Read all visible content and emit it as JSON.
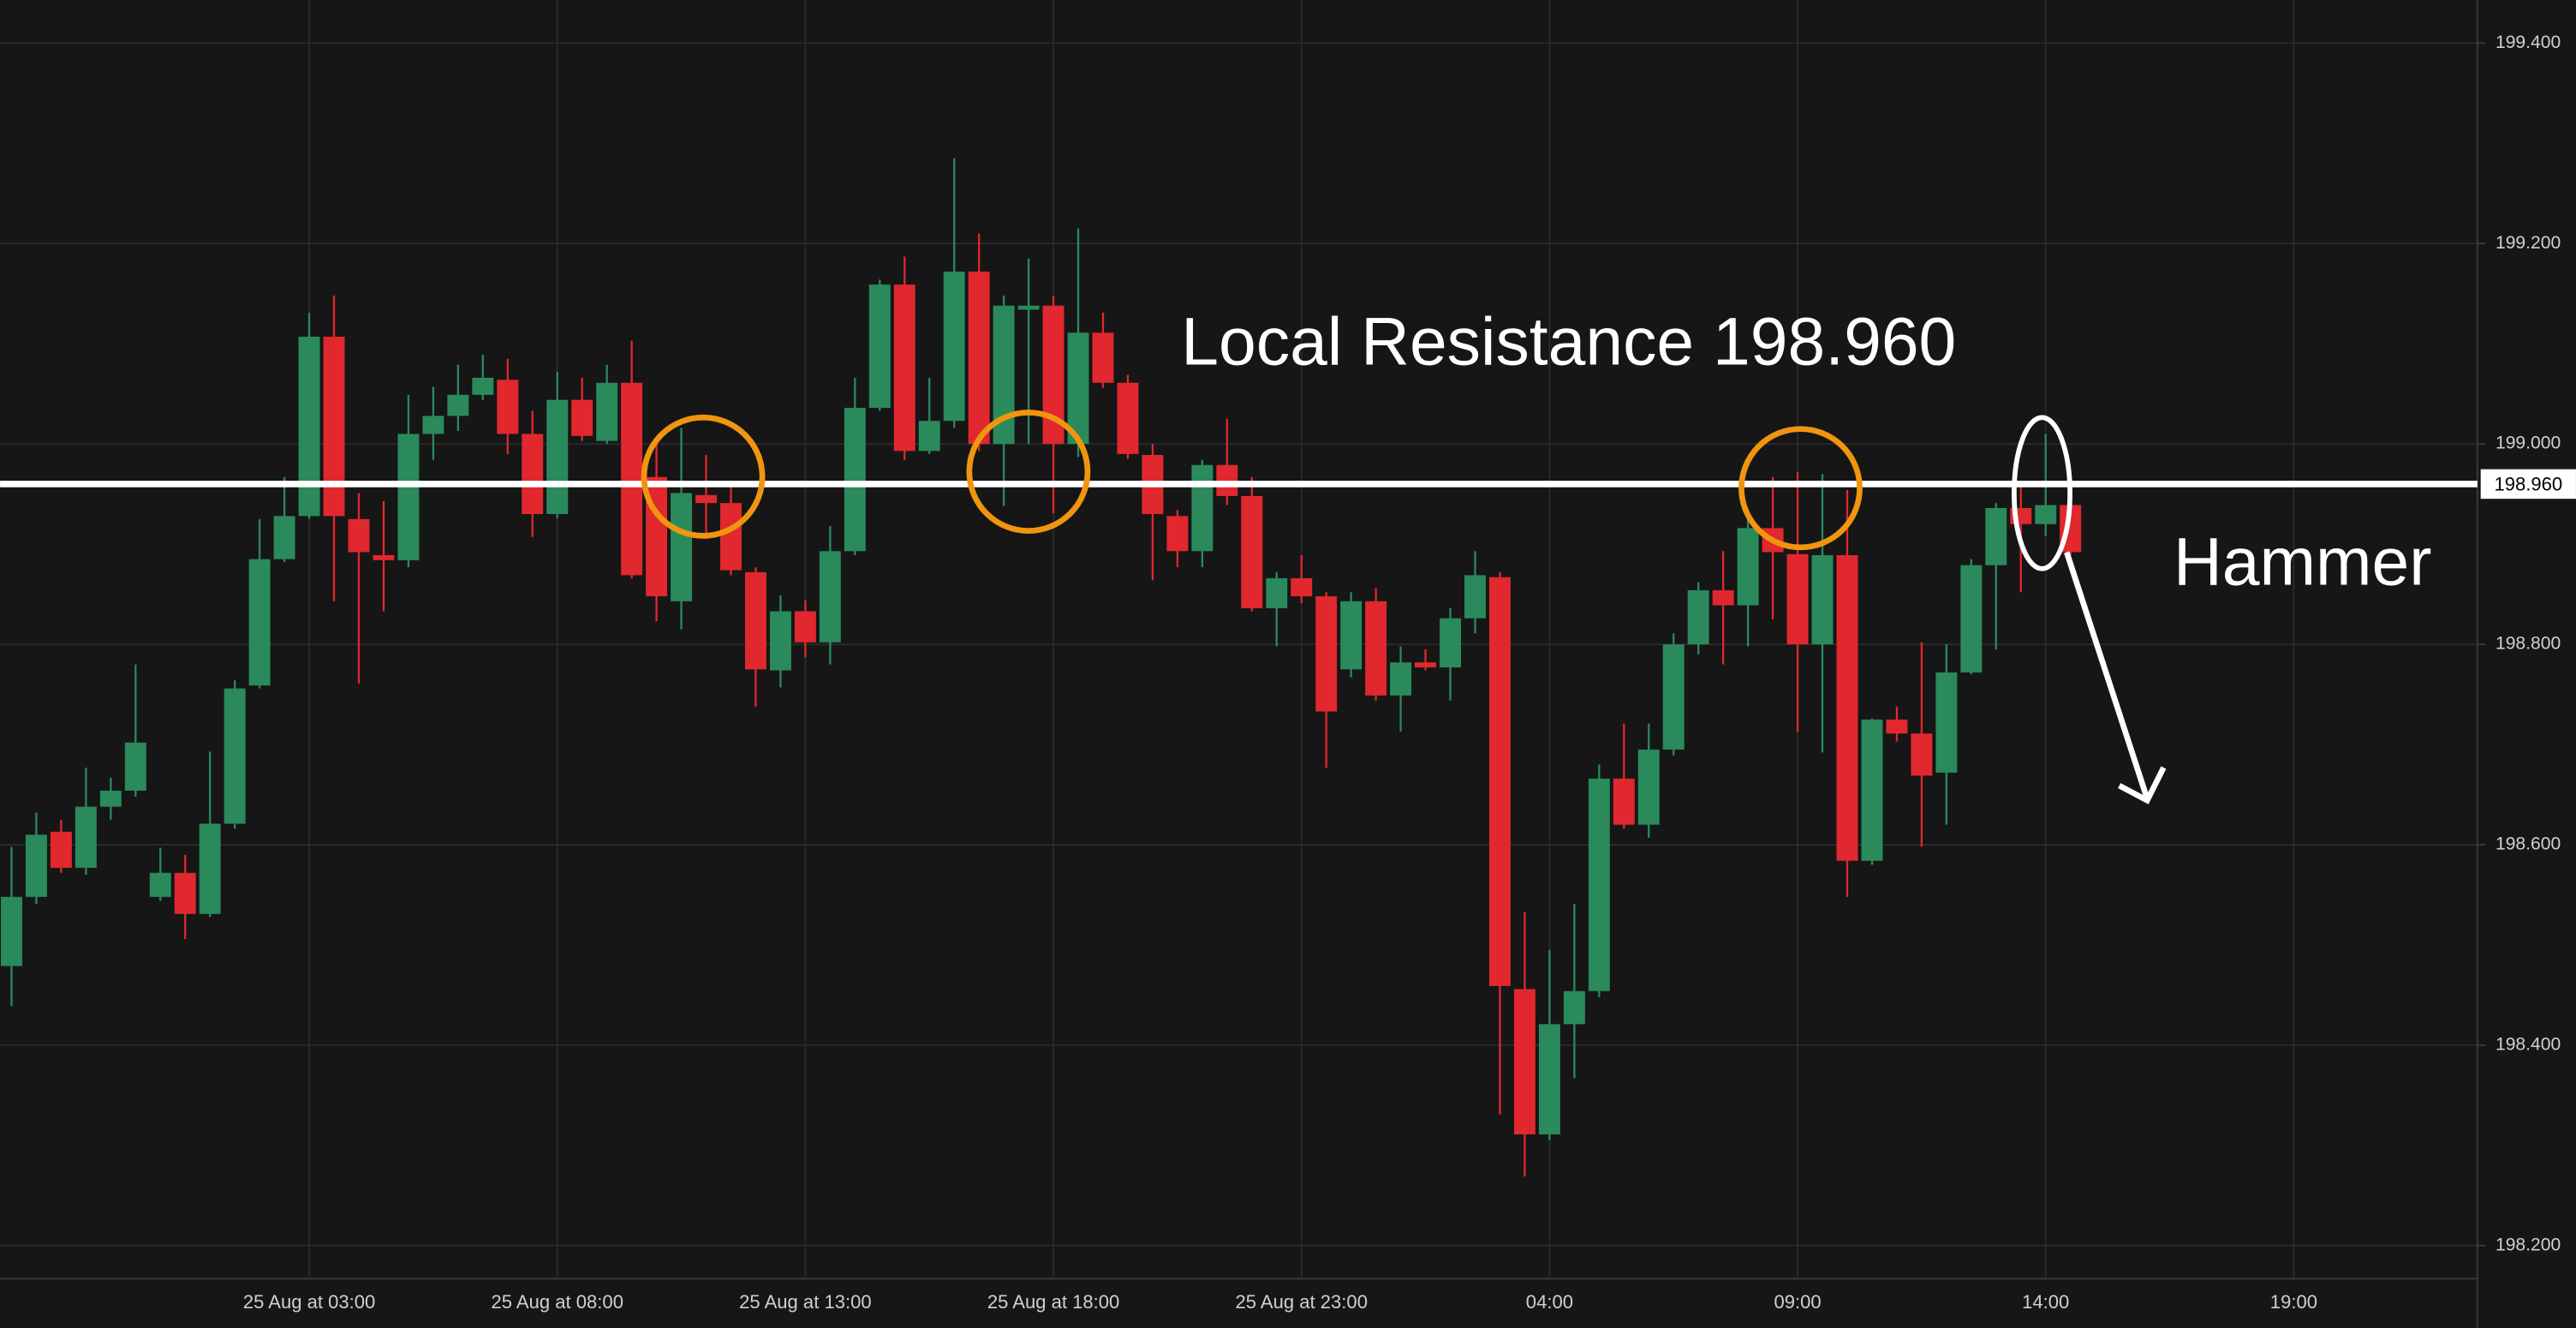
{
  "chart_data": {
    "type": "candlestick",
    "title": "Local Resistance 198.960",
    "annotation": "Hammer",
    "up_color": "#2a8a5c",
    "down_color": "#e0282e",
    "grid": true,
    "categories": [
      null,
      null,
      null,
      null,
      null,
      null,
      null,
      null,
      null,
      null,
      null,
      null,
      "25 Aug at 03:00",
      null,
      null,
      null,
      null,
      null,
      null,
      null,
      null,
      null,
      "25 Aug at 08:00",
      null,
      null,
      null,
      null,
      null,
      null,
      null,
      null,
      null,
      "25 Aug at 13:00",
      null,
      null,
      null,
      null,
      null,
      null,
      null,
      null,
      null,
      "25 Aug at 18:00",
      null,
      null,
      null,
      null,
      null,
      null,
      null,
      null,
      null,
      "25 Aug at 23:00",
      null,
      null,
      null,
      null,
      null,
      null,
      null,
      null,
      null,
      "04:00",
      null,
      null,
      null,
      null,
      null,
      null,
      null,
      null,
      null,
      "09:00",
      null,
      null,
      null,
      null,
      null,
      null,
      null,
      null,
      null,
      "14:00",
      null,
      null,
      null,
      null,
      null,
      null,
      null,
      null,
      null,
      "19:00"
    ],
    "open": [
      198.479,
      198.548,
      198.613,
      198.577,
      198.638,
      198.654,
      198.548,
      198.572,
      198.531,
      198.621,
      198.759,
      198.885,
      198.928,
      199.107,
      198.925,
      198.889,
      198.884,
      199.01,
      199.028,
      199.049,
      199.064,
      199.01,
      198.93,
      199.044,
      199.003,
      199.061,
      198.967,
      198.843,
      198.949,
      198.941,
      198.872,
      198.774,
      198.833,
      198.802,
      198.893,
      199.036,
      199.159,
      198.993,
      199.023,
      199.172,
      199.0,
      199.134,
      199.138,
      199.0,
      199.111,
      199.061,
      198.989,
      198.928,
      198.893,
      198.979,
      198.948,
      198.836,
      198.866,
      198.848,
      198.775,
      198.843,
      198.749,
      198.782,
      198.777,
      198.826,
      198.867,
      198.456,
      198.311,
      198.421,
      198.454,
      198.666,
      198.62,
      198.695,
      198.8,
      198.854,
      198.839,
      198.916,
      198.89,
      198.8,
      198.889,
      198.584,
      198.725,
      198.711,
      198.672,
      198.772,
      198.879,
      198.936,
      198.92,
      198.939,
      null,
      null,
      null,
      null,
      null,
      null,
      null,
      null,
      null
    ],
    "high": [
      198.598,
      198.632,
      198.625,
      198.677,
      198.667,
      198.78,
      198.597,
      198.59,
      198.693,
      198.764,
      198.925,
      198.967,
      199.131,
      199.148,
      198.951,
      198.943,
      199.049,
      199.057,
      199.079,
      199.089,
      199.085,
      199.033,
      199.072,
      199.066,
      199.079,
      199.103,
      199.0,
      199.016,
      198.989,
      198.962,
      198.877,
      198.849,
      198.844,
      198.918,
      199.066,
      199.164,
      199.187,
      199.066,
      199.285,
      199.21,
      199.148,
      199.185,
      199.148,
      199.215,
      199.131,
      199.069,
      199.0,
      198.934,
      198.984,
      199.025,
      198.967,
      198.872,
      198.889,
      198.852,
      198.852,
      198.856,
      198.798,
      198.795,
      198.836,
      198.893,
      198.872,
      198.533,
      198.495,
      198.541,
      198.68,
      198.721,
      198.721,
      198.811,
      198.862,
      198.893,
      198.934,
      198.967,
      198.972,
      198.97,
      198.954,
      198.726,
      198.738,
      198.802,
      198.8,
      198.885,
      198.941,
      198.959,
      199.01,
      198.943,
      null,
      null,
      null,
      null,
      null,
      null,
      null,
      null,
      null
    ],
    "low": [
      198.439,
      198.541,
      198.572,
      198.57,
      198.625,
      198.648,
      198.544,
      198.506,
      198.528,
      198.616,
      198.756,
      198.882,
      198.925,
      198.843,
      198.761,
      198.833,
      198.877,
      198.984,
      199.013,
      199.044,
      198.99,
      198.907,
      198.926,
      199.003,
      199.0,
      198.866,
      198.823,
      198.815,
      198.905,
      198.869,
      198.738,
      198.757,
      198.787,
      198.78,
      198.889,
      199.033,
      198.984,
      198.99,
      199.016,
      198.993,
      198.938,
      199.0,
      198.931,
      198.987,
      199.056,
      198.985,
      198.864,
      198.877,
      198.877,
      198.939,
      198.833,
      198.798,
      198.841,
      198.677,
      198.767,
      198.744,
      198.713,
      198.774,
      198.744,
      198.811,
      198.331,
      198.269,
      198.305,
      198.367,
      198.448,
      198.616,
      198.607,
      198.689,
      198.79,
      198.78,
      198.798,
      198.825,
      198.713,
      198.692,
      198.548,
      198.58,
      198.703,
      198.598,
      198.62,
      198.77,
      198.795,
      198.852,
      198.908,
      198.889,
      null,
      null,
      null,
      null,
      null,
      null,
      null,
      null,
      null
    ],
    "close": [
      198.548,
      198.61,
      198.577,
      198.638,
      198.654,
      198.702,
      198.572,
      198.531,
      198.621,
      198.756,
      198.885,
      198.928,
      199.107,
      198.928,
      198.892,
      198.884,
      199.01,
      199.028,
      199.049,
      199.066,
      199.01,
      198.93,
      199.044,
      199.008,
      199.061,
      198.869,
      198.848,
      198.951,
      198.941,
      198.874,
      198.775,
      198.833,
      198.802,
      198.893,
      199.036,
      199.159,
      198.993,
      199.023,
      199.172,
      199.0,
      199.138,
      199.138,
      199.0,
      199.111,
      199.061,
      198.99,
      198.93,
      198.893,
      198.979,
      198.948,
      198.836,
      198.866,
      198.848,
      198.733,
      198.843,
      198.749,
      198.782,
      198.777,
      198.826,
      198.869,
      198.459,
      198.311,
      198.421,
      198.454,
      198.666,
      198.62,
      198.695,
      198.8,
      198.854,
      198.839,
      198.916,
      198.892,
      198.8,
      198.889,
      198.584,
      198.725,
      198.711,
      198.669,
      198.772,
      198.879,
      198.936,
      198.92,
      198.939,
      198.892,
      null,
      null,
      null,
      null,
      null,
      null,
      null,
      null,
      null
    ],
    "ylim": [
      198.167,
      199.443
    ],
    "yticks": [
      {
        "value": 199.4,
        "label": "199.400"
      },
      {
        "value": 199.2,
        "label": "199.200"
      },
      {
        "value": 199.0,
        "label": "199.000"
      },
      {
        "value": 198.8,
        "label": "198.800"
      },
      {
        "value": 198.6,
        "label": "198.600"
      },
      {
        "value": 198.4,
        "label": "198.400"
      },
      {
        "value": 198.2,
        "label": "198.200"
      }
    ],
    "resistance": {
      "value": 198.96,
      "label": "198.960"
    }
  }
}
